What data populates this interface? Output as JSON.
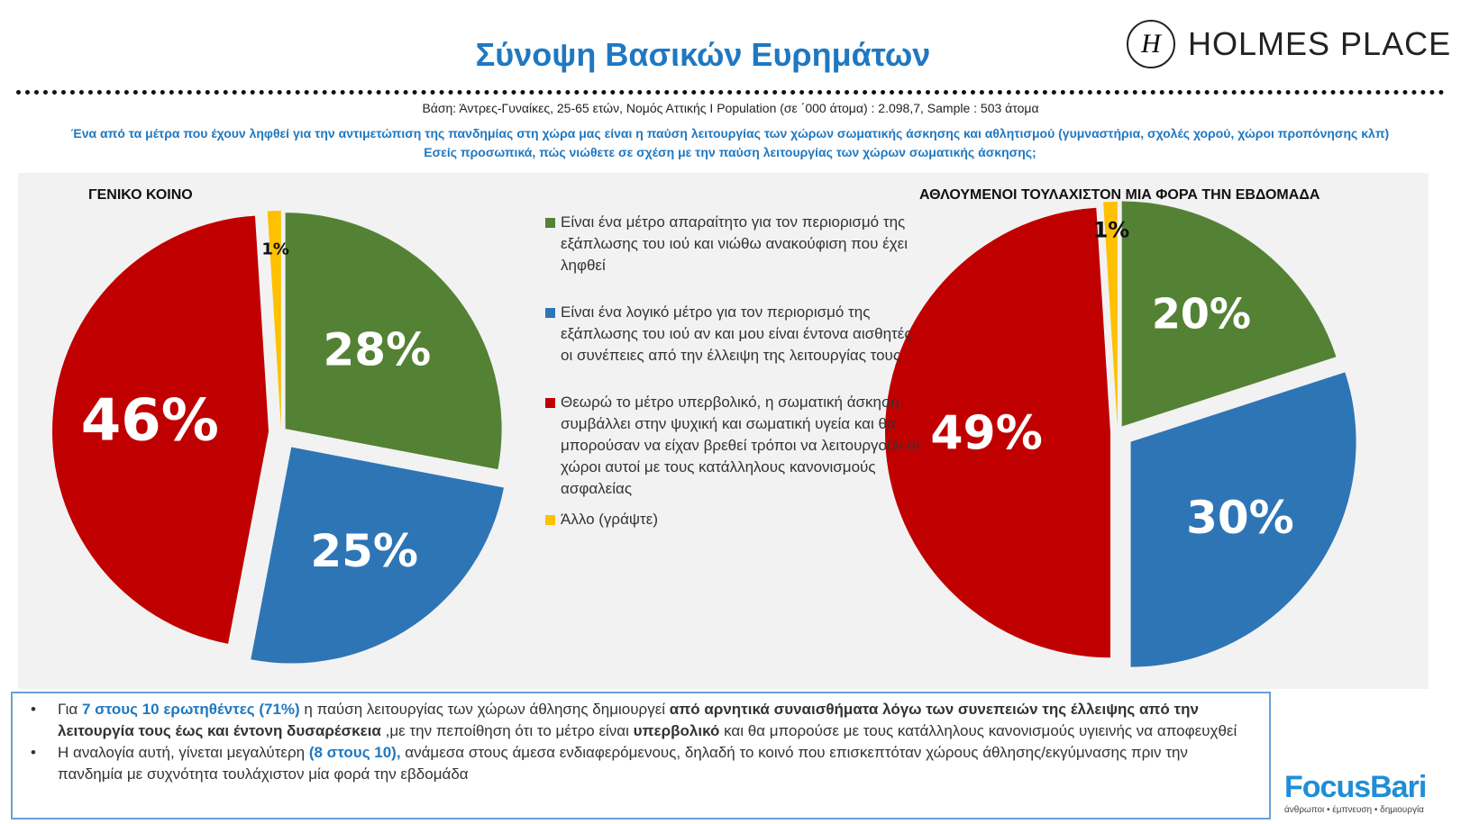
{
  "title": "Σύνοψη Βασικών Ευρημάτων",
  "logo": {
    "brand": "HOLMES PLACE",
    "mark": "H"
  },
  "base": "Βάση: Άντρες-Γυναίκες, 25-65 ετών, Νομός Αττικής  I Population (σε ΄000 άτομα) : 2.098,7, Sample : 503 άτομα",
  "question": "Ένα από τα μέτρα που έχουν ληφθεί για την αντιμετώπιση της πανδημίας στη χώρα μας είναι η παύση λειτουργίας των χώρων σωματικής άσκησης και αθλητισμού (γυμναστήρια, σχολές χορού, χώροι προπόνησης κλπ) Εσείς προσωπικά, πώς νιώθετε σε σχέση με την παύση λειτουργίας των χώρων σωματικής άσκησης;",
  "colors": {
    "green": "#548235",
    "blue": "#2e75b6",
    "red": "#c00000",
    "yellow": "#ffc000"
  },
  "legend": [
    {
      "label": "Είναι ένα μέτρο απαραίτητο για τον περιορισμό της εξάπλωσης του ιού και νιώθω ανακούφιση που έχει ληφθεί",
      "color": "#548235"
    },
    {
      "label": "Είναι ένα λογικό μέτρο για τον περιορισμό της εξάπλωσης του ιού αν και μου είναι έντονα αισθητές οι συνέπειες από την έλλειψη της λειτουργίας τους",
      "color": "#2e75b6"
    },
    {
      "label": "Θεωρώ το μέτρο υπερβολικό, η σωματική άσκηση συμβάλλει στην ψυχική και σωματική υγεία και θα μπορούσαν να είχαν βρεθεί τρόποι να λειτουργούν οι χώροι αυτοί με τους κατάλληλους κανονισμούς ασφαλείας",
      "color": "#c00000"
    },
    {
      "label": "Άλλο (γράψτε)",
      "color": "#ffc000"
    }
  ],
  "chart_data": [
    {
      "type": "pie",
      "title": "ΓΕΝΙΚΟ ΚΟΙΝΟ",
      "categories": [
        "Απαραίτητο",
        "Λογικό",
        "Υπερβολικό",
        "Άλλο"
      ],
      "values": [
        28,
        25,
        46,
        1
      ],
      "labels": [
        "28%",
        "25%",
        "46%",
        "1%"
      ]
    },
    {
      "type": "pie",
      "title": "ΑΘΛΟΥΜΕΝΟΙ ΤΟΥΛΑΧΙΣΤΟΝ ΜΙΑ ΦΟΡΑ ΤΗΝ ΕΒΔΟΜΑΔΑ",
      "categories": [
        "Απαραίτητο",
        "Λογικό",
        "Υπερβολικό",
        "Άλλο"
      ],
      "values": [
        20,
        30,
        49,
        1
      ],
      "labels": [
        "20%",
        "30%",
        "49%",
        "1%"
      ]
    }
  ],
  "summary": {
    "b1": {
      "t1": "Για ",
      "h1": "7 στους 10 ερωτηθέντες (71%)",
      "t2": " η παύση λειτουργίας των χώρων άθλησης δημιουργεί ",
      "s1": "από αρνητικά συναισθήματα λόγω των συνεπειών της έλλειψης από την λειτουργία τους έως και έντονη δυσαρέσκεια",
      "t3": " ,με την πεποίθηση ότι το μέτρο είναι ",
      "s2": "υπερβολικό",
      "t4": " και θα μπορούσε με τους κατάλληλους κανονισμούς υγιεινής να αποφευχθεί"
    },
    "b2": {
      "t1": "Η αναλογία αυτή, γίνεται μεγαλύτερη ",
      "h1": "(8 στους 10),",
      "t2": "  ανάμεσα στους άμεσα ενδιαφερόμενους, δηλαδή το κοινό που επισκεπτόταν χώρους άθλησης/εκγύμνασης πριν την πανδημία με συχνότητα τουλάχιστον μία φορά την εβδομάδα"
    }
  },
  "footer_logo": {
    "brand": "FocusBari",
    "tagline": "άνθρωποι • έμπνευση • δημιουργία"
  }
}
